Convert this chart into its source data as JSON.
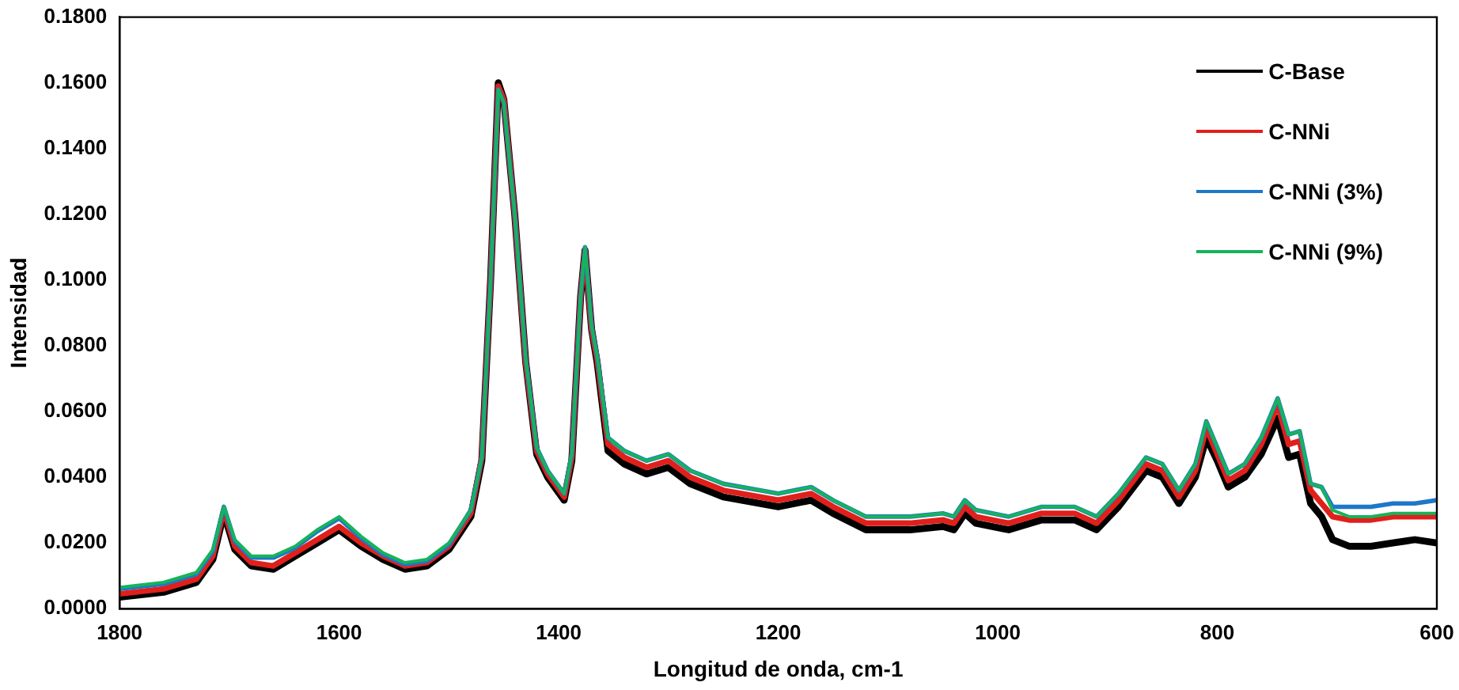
{
  "chart_data": {
    "type": "line",
    "xlabel": "Longitud de onda, cm-1",
    "ylabel": "Intensidad",
    "x": [
      1800,
      1760,
      1730,
      1715,
      1705,
      1695,
      1680,
      1660,
      1640,
      1620,
      1600,
      1580,
      1560,
      1540,
      1520,
      1500,
      1480,
      1470,
      1462,
      1455,
      1450,
      1440,
      1430,
      1420,
      1410,
      1395,
      1388,
      1380,
      1376,
      1370,
      1365,
      1355,
      1340,
      1320,
      1300,
      1280,
      1250,
      1200,
      1170,
      1150,
      1120,
      1080,
      1050,
      1040,
      1030,
      1020,
      990,
      960,
      930,
      910,
      890,
      865,
      850,
      835,
      820,
      810,
      800,
      790,
      775,
      760,
      745,
      735,
      725,
      715,
      705,
      695,
      680,
      660,
      640,
      620,
      600
    ],
    "series": [
      {
        "name": "C-Base",
        "color": "#000000",
        "values": [
          0.0035,
          0.005,
          0.008,
          0.015,
          0.029,
          0.018,
          0.013,
          0.012,
          0.016,
          0.02,
          0.024,
          0.019,
          0.015,
          0.012,
          0.013,
          0.018,
          0.028,
          0.045,
          0.1,
          0.16,
          0.155,
          0.12,
          0.075,
          0.047,
          0.04,
          0.033,
          0.045,
          0.095,
          0.109,
          0.085,
          0.075,
          0.048,
          0.044,
          0.041,
          0.043,
          0.038,
          0.034,
          0.031,
          0.033,
          0.029,
          0.024,
          0.024,
          0.025,
          0.024,
          0.029,
          0.026,
          0.024,
          0.027,
          0.027,
          0.024,
          0.031,
          0.042,
          0.04,
          0.032,
          0.04,
          0.052,
          0.045,
          0.037,
          0.04,
          0.047,
          0.058,
          0.046,
          0.047,
          0.032,
          0.028,
          0.021,
          0.019,
          0.019,
          0.02,
          0.021,
          0.02
        ]
      },
      {
        "name": "C-NNi",
        "color": "#e0201b",
        "values": [
          0.0045,
          0.006,
          0.009,
          0.016,
          0.03,
          0.019,
          0.014,
          0.013,
          0.017,
          0.021,
          0.025,
          0.02,
          0.016,
          0.013,
          0.014,
          0.019,
          0.029,
          0.046,
          0.1,
          0.159,
          0.155,
          0.12,
          0.075,
          0.048,
          0.041,
          0.034,
          0.046,
          0.095,
          0.109,
          0.085,
          0.076,
          0.05,
          0.046,
          0.043,
          0.045,
          0.04,
          0.036,
          0.033,
          0.035,
          0.031,
          0.026,
          0.026,
          0.027,
          0.026,
          0.031,
          0.028,
          0.026,
          0.029,
          0.029,
          0.026,
          0.033,
          0.044,
          0.042,
          0.034,
          0.042,
          0.055,
          0.047,
          0.039,
          0.042,
          0.05,
          0.062,
          0.05,
          0.051,
          0.036,
          0.032,
          0.028,
          0.027,
          0.027,
          0.028,
          0.028,
          0.028
        ]
      },
      {
        "name": "C-NNi (3%)",
        "color": "#1f77c8",
        "values": [
          0.006,
          0.0075,
          0.0105,
          0.0175,
          0.031,
          0.0205,
          0.0155,
          0.0155,
          0.0185,
          0.0235,
          0.0275,
          0.0215,
          0.0165,
          0.0135,
          0.0145,
          0.0195,
          0.03,
          0.046,
          0.1,
          0.158,
          0.154,
          0.12,
          0.076,
          0.049,
          0.042,
          0.035,
          0.047,
          0.095,
          0.11,
          0.086,
          0.077,
          0.052,
          0.048,
          0.045,
          0.047,
          0.042,
          0.038,
          0.035,
          0.037,
          0.033,
          0.028,
          0.028,
          0.029,
          0.028,
          0.033,
          0.03,
          0.028,
          0.031,
          0.031,
          0.028,
          0.035,
          0.046,
          0.044,
          0.036,
          0.044,
          0.057,
          0.049,
          0.041,
          0.044,
          0.052,
          0.064,
          0.053,
          0.054,
          0.038,
          0.037,
          0.031,
          0.031,
          0.031,
          0.032,
          0.032,
          0.033
        ]
      },
      {
        "name": "C-NNi (9%)",
        "color": "#17b35a",
        "values": [
          0.0065,
          0.008,
          0.011,
          0.018,
          0.031,
          0.021,
          0.016,
          0.016,
          0.019,
          0.024,
          0.028,
          0.022,
          0.017,
          0.014,
          0.015,
          0.02,
          0.03,
          0.046,
          0.1,
          0.158,
          0.154,
          0.12,
          0.076,
          0.049,
          0.042,
          0.035,
          0.047,
          0.095,
          0.11,
          0.086,
          0.077,
          0.052,
          0.048,
          0.045,
          0.047,
          0.042,
          0.038,
          0.035,
          0.037,
          0.033,
          0.028,
          0.028,
          0.029,
          0.028,
          0.033,
          0.03,
          0.028,
          0.031,
          0.031,
          0.028,
          0.035,
          0.046,
          0.044,
          0.036,
          0.044,
          0.057,
          0.049,
          0.041,
          0.044,
          0.052,
          0.064,
          0.053,
          0.054,
          0.038,
          0.037,
          0.03,
          0.028,
          0.028,
          0.029,
          0.029,
          0.029
        ]
      }
    ],
    "xlim": [
      1800,
      600
    ],
    "xticks": [
      1800,
      1600,
      1400,
      1200,
      1000,
      800,
      600
    ],
    "ylim": [
      0,
      0.18
    ],
    "yticks": [
      {
        "value": 0,
        "label": "0.0000"
      },
      {
        "value": 0.02,
        "label": "0.0200"
      },
      {
        "value": 0.04,
        "label": "0.0400"
      },
      {
        "value": 0.06,
        "label": "0.0600"
      },
      {
        "value": 0.08,
        "label": "0.0800"
      },
      {
        "value": 0.1,
        "label": "0.1000"
      },
      {
        "value": 0.12,
        "label": "0.1200"
      },
      {
        "value": 0.14,
        "label": "0.1400"
      },
      {
        "value": 0.16,
        "label": "0.1600"
      },
      {
        "value": 0.18,
        "label": "0.1800"
      }
    ],
    "grid": false,
    "legend": "top right",
    "marker": "none",
    "line_style": "solid"
  }
}
